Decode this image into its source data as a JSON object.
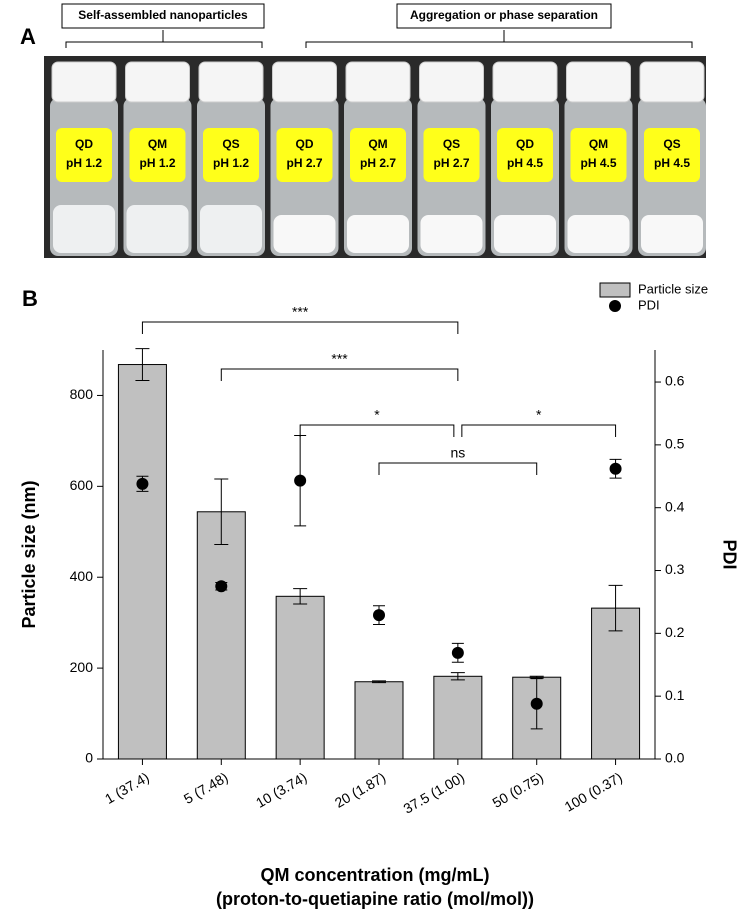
{
  "panel_a": {
    "letter": "A",
    "groups": [
      "Self-assembled nanoparticles",
      "Aggregation or phase separation"
    ],
    "vials": [
      {
        "drug": "QD",
        "ph": "pH 1.2"
      },
      {
        "drug": "QM",
        "ph": "pH 1.2"
      },
      {
        "drug": "QS",
        "ph": "pH 1.2"
      },
      {
        "drug": "QD",
        "ph": "pH 2.7"
      },
      {
        "drug": "QM",
        "ph": "pH 2.7"
      },
      {
        "drug": "QS",
        "ph": "pH 2.7"
      },
      {
        "drug": "QD",
        "ph": "pH 4.5"
      },
      {
        "drug": "QM",
        "ph": "pH 4.5"
      },
      {
        "drug": "QS",
        "ph": "pH 4.5"
      }
    ]
  },
  "chart_data": {
    "type": "bar",
    "panel_label": "B",
    "x_label": [
      "QM concentration (mg/mL)",
      "(proton-to-quetiapine ratio (mol/mol))"
    ],
    "y_label": "Particle size (nm)",
    "y2_label": "PDI",
    "categories": [
      "1 (37.4)",
      "5 (7.48)",
      "10 (3.74)",
      "20 (1.87)",
      "37.5 (1.00)",
      "50 (0.75)",
      "100 (0.37)"
    ],
    "series": [
      {
        "name": "Particle size",
        "color": "#c0c0c0",
        "values": [
          868,
          544,
          358,
          170,
          182,
          180,
          332
        ],
        "errors": [
          35,
          72,
          17,
          2,
          8,
          2,
          50
        ]
      },
      {
        "name": "PDI",
        "color": "#000000",
        "axis": "y2",
        "values": [
          0.438,
          0.275,
          0.443,
          0.229,
          0.169,
          0.088,
          0.462
        ],
        "errors": [
          0.012,
          0.006,
          0.072,
          0.015,
          0.015,
          0.04,
          0.015
        ]
      }
    ],
    "ylim": [
      0,
      900
    ],
    "yticks": [
      0,
      200,
      400,
      600,
      800
    ],
    "y2lim": [
      0,
      0.651
    ],
    "y2ticks": [
      {
        "value": 0,
        "label": "0.0"
      },
      0.1,
      0.2,
      0.3,
      0.4,
      0.5,
      0.6
    ],
    "annotations": [
      "***",
      "***",
      "*",
      "ns",
      "*"
    ],
    "legend": "upper right"
  }
}
